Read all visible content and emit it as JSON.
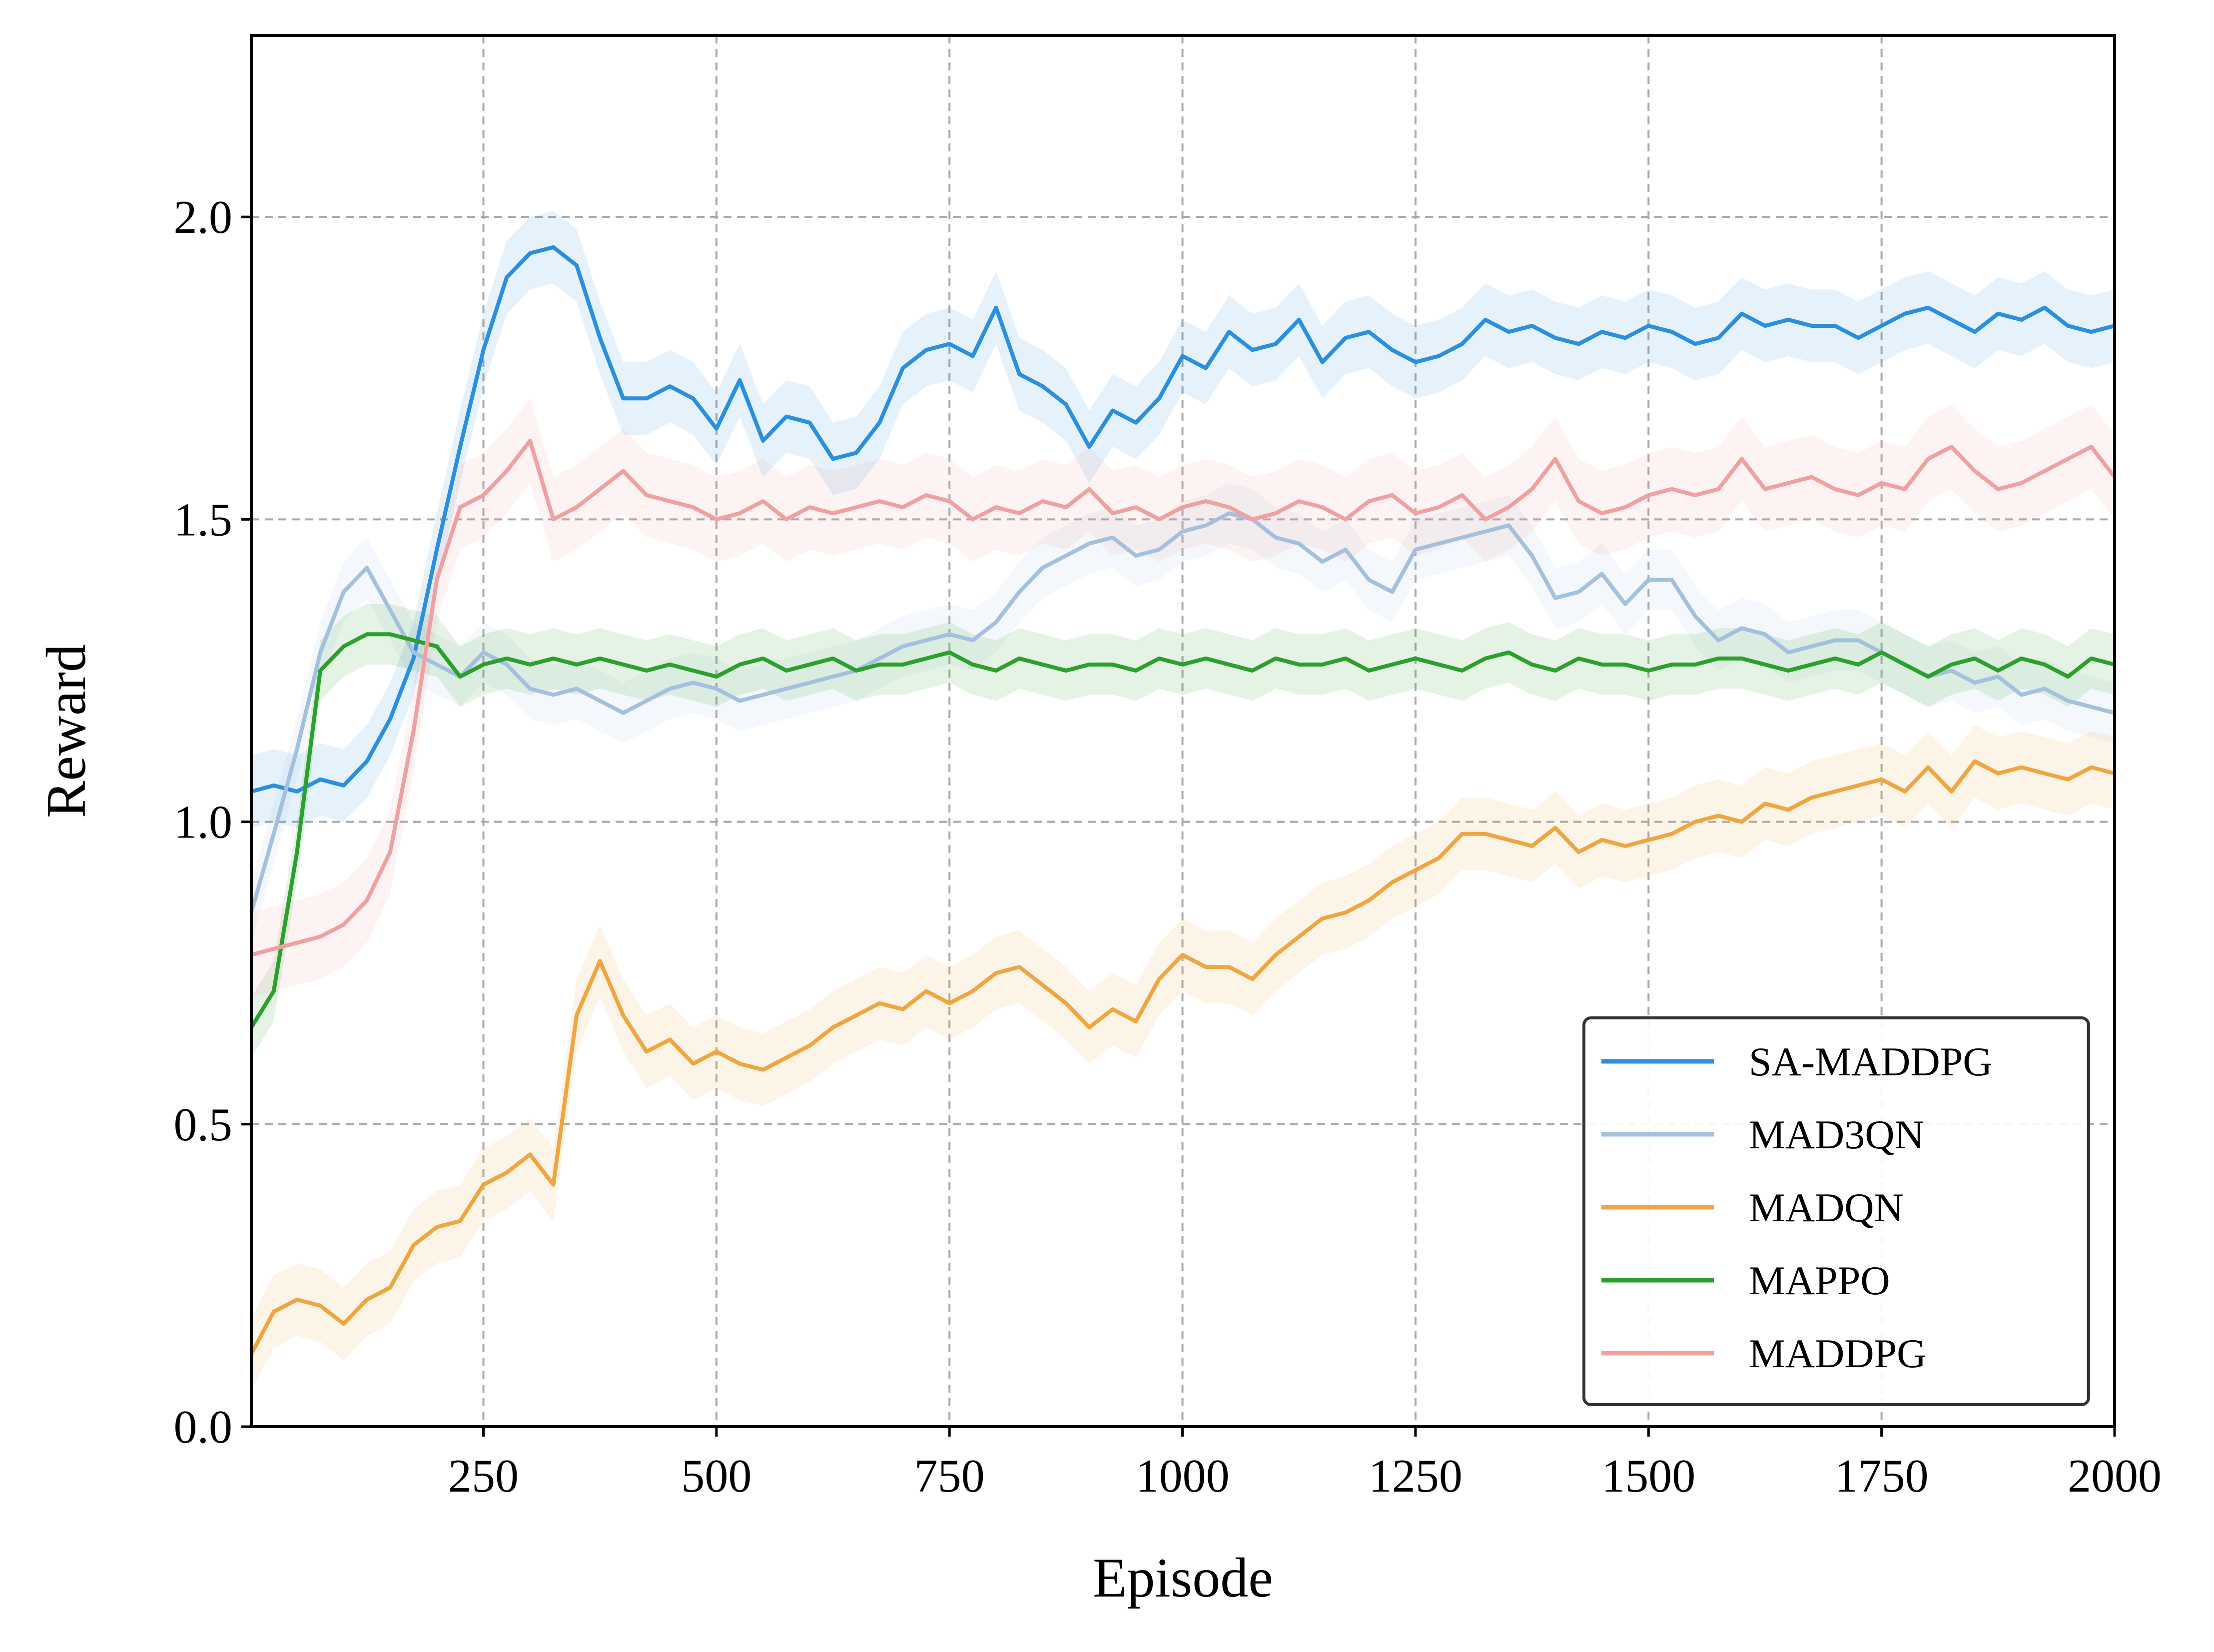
{
  "chart_data": {
    "type": "line",
    "xlabel": "Episode",
    "ylabel": "Reward",
    "xlim": [
      1,
      2000
    ],
    "ylim": [
      0.0,
      2.3
    ],
    "xticks": [
      250,
      500,
      750,
      1000,
      1250,
      1500,
      1750,
      2000
    ],
    "xtick_labels": [
      "250",
      "500",
      "750",
      "1000",
      "1250",
      "1500",
      "1750",
      "2000"
    ],
    "yticks": [
      0.0,
      0.5,
      1.0,
      1.5,
      2.0
    ],
    "ytick_labels": [
      "0.0",
      "0.5",
      "1.0",
      "1.5",
      "2.0"
    ],
    "grid": true,
    "legend_position": "lower-right",
    "series": [
      {
        "name": "SA-MADDPG",
        "color": "#2b8fe0",
        "x": [
          1,
          25,
          50,
          75,
          100,
          125,
          150,
          175,
          200,
          225,
          250,
          275,
          300,
          325,
          350,
          375,
          400,
          425,
          450,
          475,
          500,
          525,
          550,
          575,
          600,
          625,
          650,
          675,
          700,
          725,
          750,
          775,
          800,
          825,
          850,
          875,
          900,
          925,
          950,
          975,
          1000,
          1025,
          1050,
          1075,
          1100,
          1125,
          1150,
          1175,
          1200,
          1225,
          1250,
          1275,
          1300,
          1325,
          1350,
          1375,
          1400,
          1425,
          1450,
          1475,
          1500,
          1525,
          1550,
          1575,
          1600,
          1625,
          1650,
          1675,
          1700,
          1725,
          1750,
          1775,
          1800,
          1825,
          1850,
          1875,
          1900,
          1925,
          1950,
          1975,
          2000
        ],
        "y": [
          1.05,
          1.06,
          1.05,
          1.07,
          1.06,
          1.1,
          1.17,
          1.27,
          1.45,
          1.62,
          1.78,
          1.9,
          1.94,
          1.95,
          1.92,
          1.8,
          1.7,
          1.7,
          1.72,
          1.7,
          1.65,
          1.73,
          1.63,
          1.67,
          1.66,
          1.6,
          1.61,
          1.66,
          1.75,
          1.78,
          1.79,
          1.77,
          1.85,
          1.74,
          1.72,
          1.69,
          1.62,
          1.68,
          1.66,
          1.7,
          1.77,
          1.75,
          1.81,
          1.78,
          1.79,
          1.83,
          1.76,
          1.8,
          1.81,
          1.78,
          1.76,
          1.77,
          1.79,
          1.83,
          1.81,
          1.82,
          1.8,
          1.79,
          1.81,
          1.8,
          1.82,
          1.81,
          1.79,
          1.8,
          1.84,
          1.82,
          1.83,
          1.82,
          1.82,
          1.8,
          1.82,
          1.84,
          1.85,
          1.83,
          1.81,
          1.84,
          1.83,
          1.85,
          1.82,
          1.81,
          1.82
        ]
      },
      {
        "name": "MAD3QN",
        "color": "#a4c0df",
        "x": [
          1,
          25,
          50,
          75,
          100,
          125,
          150,
          175,
          200,
          225,
          250,
          275,
          300,
          325,
          350,
          375,
          400,
          425,
          450,
          475,
          500,
          525,
          550,
          575,
          600,
          625,
          650,
          675,
          700,
          725,
          750,
          775,
          800,
          825,
          850,
          875,
          900,
          925,
          950,
          975,
          1000,
          1025,
          1050,
          1075,
          1100,
          1125,
          1150,
          1175,
          1200,
          1225,
          1250,
          1275,
          1300,
          1325,
          1350,
          1375,
          1400,
          1425,
          1450,
          1475,
          1500,
          1525,
          1550,
          1575,
          1600,
          1625,
          1650,
          1675,
          1700,
          1725,
          1750,
          1775,
          1800,
          1825,
          1850,
          1875,
          1900,
          1925,
          1950,
          1975,
          2000
        ],
        "y": [
          0.85,
          0.98,
          1.12,
          1.28,
          1.38,
          1.42,
          1.35,
          1.28,
          1.26,
          1.24,
          1.28,
          1.26,
          1.22,
          1.21,
          1.22,
          1.2,
          1.18,
          1.2,
          1.22,
          1.23,
          1.22,
          1.2,
          1.21,
          1.22,
          1.23,
          1.24,
          1.25,
          1.27,
          1.29,
          1.3,
          1.31,
          1.3,
          1.33,
          1.38,
          1.42,
          1.44,
          1.46,
          1.47,
          1.44,
          1.45,
          1.48,
          1.49,
          1.51,
          1.5,
          1.47,
          1.46,
          1.43,
          1.45,
          1.4,
          1.38,
          1.45,
          1.46,
          1.47,
          1.48,
          1.49,
          1.44,
          1.37,
          1.38,
          1.41,
          1.36,
          1.4,
          1.4,
          1.34,
          1.3,
          1.32,
          1.31,
          1.28,
          1.29,
          1.3,
          1.3,
          1.28,
          1.26,
          1.24,
          1.25,
          1.23,
          1.24,
          1.21,
          1.22,
          1.2,
          1.19,
          1.18
        ]
      },
      {
        "name": "MADQN",
        "color": "#f0a540",
        "x": [
          1,
          25,
          50,
          75,
          100,
          125,
          150,
          175,
          200,
          225,
          250,
          275,
          300,
          325,
          350,
          375,
          400,
          425,
          450,
          475,
          500,
          525,
          550,
          575,
          600,
          625,
          650,
          675,
          700,
          725,
          750,
          775,
          800,
          825,
          850,
          875,
          900,
          925,
          950,
          975,
          1000,
          1025,
          1050,
          1075,
          1100,
          1125,
          1150,
          1175,
          1200,
          1225,
          1250,
          1275,
          1300,
          1325,
          1350,
          1375,
          1400,
          1425,
          1450,
          1475,
          1500,
          1525,
          1550,
          1575,
          1600,
          1625,
          1650,
          1675,
          1700,
          1725,
          1750,
          1775,
          1800,
          1825,
          1850,
          1875,
          1900,
          1925,
          1950,
          1975,
          2000
        ],
        "y": [
          0.12,
          0.19,
          0.21,
          0.2,
          0.17,
          0.21,
          0.23,
          0.3,
          0.33,
          0.34,
          0.4,
          0.42,
          0.45,
          0.4,
          0.68,
          0.77,
          0.68,
          0.62,
          0.64,
          0.6,
          0.62,
          0.6,
          0.59,
          0.61,
          0.63,
          0.66,
          0.68,
          0.7,
          0.69,
          0.72,
          0.7,
          0.72,
          0.75,
          0.76,
          0.73,
          0.7,
          0.66,
          0.69,
          0.67,
          0.74,
          0.78,
          0.76,
          0.76,
          0.74,
          0.78,
          0.81,
          0.84,
          0.85,
          0.87,
          0.9,
          0.92,
          0.94,
          0.98,
          0.98,
          0.97,
          0.96,
          0.99,
          0.95,
          0.97,
          0.96,
          0.97,
          0.98,
          1.0,
          1.01,
          1.0,
          1.03,
          1.02,
          1.04,
          1.05,
          1.06,
          1.07,
          1.05,
          1.09,
          1.05,
          1.1,
          1.08,
          1.09,
          1.08,
          1.07,
          1.09,
          1.08
        ]
      },
      {
        "name": "MAPPO",
        "color": "#2ca02c",
        "x": [
          1,
          25,
          50,
          75,
          100,
          125,
          150,
          175,
          200,
          225,
          250,
          275,
          300,
          325,
          350,
          375,
          400,
          425,
          450,
          475,
          500,
          525,
          550,
          575,
          600,
          625,
          650,
          675,
          700,
          725,
          750,
          775,
          800,
          825,
          850,
          875,
          900,
          925,
          950,
          975,
          1000,
          1025,
          1050,
          1075,
          1100,
          1125,
          1150,
          1175,
          1200,
          1225,
          1250,
          1275,
          1300,
          1325,
          1350,
          1375,
          1400,
          1425,
          1450,
          1475,
          1500,
          1525,
          1550,
          1575,
          1600,
          1625,
          1650,
          1675,
          1700,
          1725,
          1750,
          1775,
          1800,
          1825,
          1850,
          1875,
          1900,
          1925,
          1950,
          1975,
          2000
        ],
        "y": [
          0.66,
          0.72,
          0.95,
          1.25,
          1.29,
          1.31,
          1.31,
          1.3,
          1.29,
          1.24,
          1.26,
          1.27,
          1.26,
          1.27,
          1.26,
          1.27,
          1.26,
          1.25,
          1.26,
          1.25,
          1.24,
          1.26,
          1.27,
          1.25,
          1.26,
          1.27,
          1.25,
          1.26,
          1.26,
          1.27,
          1.28,
          1.26,
          1.25,
          1.27,
          1.26,
          1.25,
          1.26,
          1.26,
          1.25,
          1.27,
          1.26,
          1.27,
          1.26,
          1.25,
          1.27,
          1.26,
          1.26,
          1.27,
          1.25,
          1.26,
          1.27,
          1.26,
          1.25,
          1.27,
          1.28,
          1.26,
          1.25,
          1.27,
          1.26,
          1.26,
          1.25,
          1.26,
          1.26,
          1.27,
          1.27,
          1.26,
          1.25,
          1.26,
          1.27,
          1.26,
          1.28,
          1.26,
          1.24,
          1.26,
          1.27,
          1.25,
          1.27,
          1.26,
          1.24,
          1.27,
          1.26
        ]
      },
      {
        "name": "MADDPG",
        "color": "#f0a0a0",
        "x": [
          1,
          25,
          50,
          75,
          100,
          125,
          150,
          175,
          200,
          225,
          250,
          275,
          300,
          325,
          350,
          375,
          400,
          425,
          450,
          475,
          500,
          525,
          550,
          575,
          600,
          625,
          650,
          675,
          700,
          725,
          750,
          775,
          800,
          825,
          850,
          875,
          900,
          925,
          950,
          975,
          1000,
          1025,
          1050,
          1075,
          1100,
          1125,
          1150,
          1175,
          1200,
          1225,
          1250,
          1275,
          1300,
          1325,
          1350,
          1375,
          1400,
          1425,
          1450,
          1475,
          1500,
          1525,
          1550,
          1575,
          1600,
          1625,
          1650,
          1675,
          1700,
          1725,
          1750,
          1775,
          1800,
          1825,
          1850,
          1875,
          1900,
          1925,
          1950,
          1975,
          2000
        ],
        "y": [
          0.78,
          0.79,
          0.8,
          0.81,
          0.83,
          0.87,
          0.95,
          1.15,
          1.4,
          1.52,
          1.54,
          1.58,
          1.63,
          1.5,
          1.52,
          1.55,
          1.58,
          1.54,
          1.53,
          1.52,
          1.5,
          1.51,
          1.53,
          1.5,
          1.52,
          1.51,
          1.52,
          1.53,
          1.52,
          1.54,
          1.53,
          1.5,
          1.52,
          1.51,
          1.53,
          1.52,
          1.55,
          1.51,
          1.52,
          1.5,
          1.52,
          1.53,
          1.52,
          1.5,
          1.51,
          1.53,
          1.52,
          1.5,
          1.53,
          1.54,
          1.51,
          1.52,
          1.54,
          1.5,
          1.52,
          1.55,
          1.6,
          1.53,
          1.51,
          1.52,
          1.54,
          1.55,
          1.54,
          1.55,
          1.6,
          1.55,
          1.56,
          1.57,
          1.55,
          1.54,
          1.56,
          1.55,
          1.6,
          1.62,
          1.58,
          1.55,
          1.56,
          1.58,
          1.6,
          1.62,
          1.57
        ]
      }
    ]
  }
}
